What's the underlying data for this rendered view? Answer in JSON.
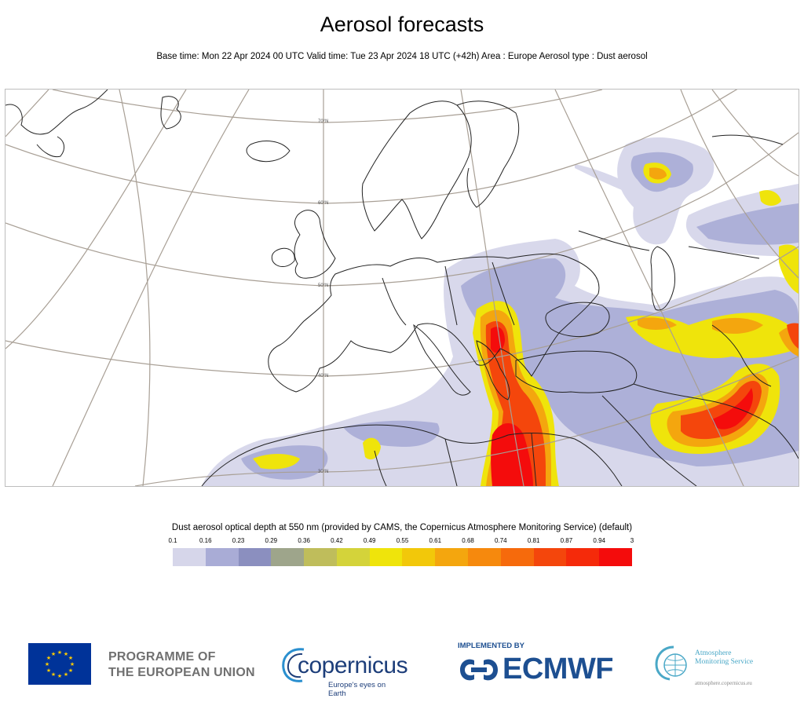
{
  "header": {
    "title": "Aerosol forecasts",
    "subtitle": "Base time: Mon 22 Apr 2024 00 UTC Valid time: Tue 23 Apr 2024 18 UTC (+42h) Area : Europe Aerosol type : Dust aerosol"
  },
  "map": {
    "lat_labels": [
      "70°N",
      "60°N",
      "50°N",
      "40°N",
      "30°N"
    ],
    "coast_color": "#222222",
    "grid_color": "#a89f95"
  },
  "colorbar": {
    "title": "Dust aerosol optical depth at 550 nm (provided by CAMS, the Copernicus Atmosphere Monitoring Service) (default)",
    "ticks": [
      "0.1",
      "0.16",
      "0.23",
      "0.29",
      "0.36",
      "0.42",
      "0.49",
      "0.55",
      "0.61",
      "0.68",
      "0.74",
      "0.81",
      "0.87",
      "0.94",
      "3"
    ],
    "colors": [
      "#d6d6ea",
      "#a9acd6",
      "#8b8fbf",
      "#9ea58b",
      "#bfbd5b",
      "#d4d33a",
      "#efe40b",
      "#f2c80a",
      "#f4a60e",
      "#f6890d",
      "#f66a0c",
      "#f4460c",
      "#f52a0a",
      "#f40c0c"
    ]
  },
  "logos": {
    "eu_text_line1": "PROGRAMME OF",
    "eu_text_line2": "THE EUROPEAN UNION",
    "copernicus_word": "copernicus",
    "copernicus_tagline": "Europe's eyes on Earth",
    "implemented_by": "IMPLEMENTED BY",
    "ecmwf_word": "ECMWF",
    "ams_line1": "Atmosphere",
    "ams_line2": "Monitoring Service",
    "ams_url": "atmosphere.copernicus.eu"
  }
}
